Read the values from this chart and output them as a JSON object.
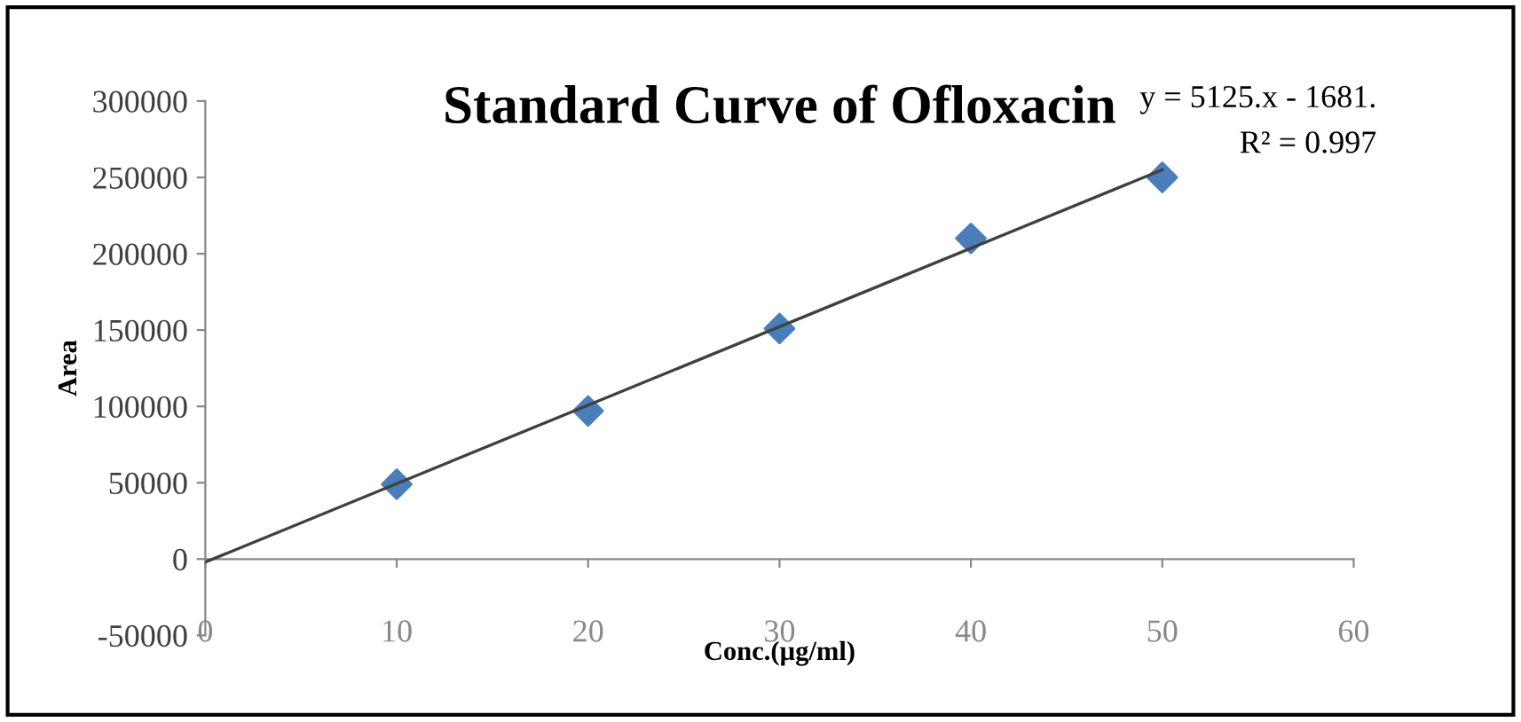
{
  "chart_data": {
    "type": "scatter",
    "title": "Standard Curve of Ofloxacin",
    "xlabel": "Conc.(µg/ml)",
    "ylabel": "Area",
    "x": [
      10,
      20,
      30,
      40,
      50
    ],
    "series": [
      {
        "color": "#4a7ebb",
        "marker": "diamond",
        "values": [
          49000,
          97000,
          151000,
          210000,
          250000
        ]
      },
      {
        "type": "line",
        "color": "#404040",
        "x": [
          0,
          50
        ],
        "values": [
          -2000,
          255000
        ]
      }
    ],
    "annotations": [
      "y = 5125.x - 1681.",
      "R² = 0.997"
    ],
    "xlim": [
      0,
      60
    ],
    "xticks": [
      0,
      10,
      20,
      30,
      40,
      50,
      60
    ],
    "ylim": [
      -50000,
      300000
    ],
    "yticks": [
      -50000,
      0,
      50000,
      100000,
      150000,
      200000,
      250000,
      300000
    ],
    "grid": false
  }
}
